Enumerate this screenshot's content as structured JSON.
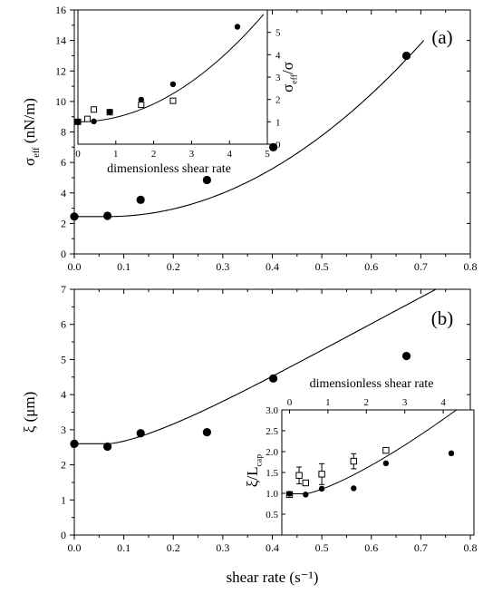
{
  "chart_data": [
    {
      "id": "a",
      "type": "scatter",
      "panel_label": "(a)",
      "ylabel": "σ_eff (nN/m)",
      "xlim": [
        0,
        0.8
      ],
      "ylim": [
        0,
        16
      ],
      "x_ticks": [
        "0.0",
        "0.1",
        "0.2",
        "0.3",
        "0.4",
        "0.5",
        "0.6",
        "0.7",
        "0.8"
      ],
      "y_ticks": [
        "0",
        "2",
        "4",
        "6",
        "8",
        "10",
        "12",
        "14",
        "16"
      ],
      "series": [
        {
          "marker": "filled-circle",
          "x": [
            0.0,
            0.067,
            0.134,
            0.268,
            0.402,
            0.671
          ],
          "y": [
            2.45,
            2.5,
            3.55,
            4.85,
            7.0,
            13.0
          ]
        }
      ],
      "fit_curve": {
        "y0": 2.45,
        "x0": 0.067,
        "k": 28.3,
        "x_end": 0.706
      },
      "inset": {
        "type": "scatter",
        "xlabel": "dimensionless shear rate",
        "ylabel": "σ_eff/σ",
        "xlim": [
          0,
          5
        ],
        "ylim": [
          0,
          6
        ],
        "x_ticks": [
          "0",
          "1",
          "2",
          "3",
          "4",
          "5"
        ],
        "y_ticks": [
          "0",
          "1",
          "2",
          "3",
          "4",
          "5"
        ],
        "series": [
          {
            "marker": "filled-circle",
            "x": [
              0.0,
              0.42,
              0.84,
              1.67,
              2.51,
              4.21
            ],
            "y": [
              1.0,
              1.02,
              1.45,
              1.99,
              2.68,
              5.25
            ]
          },
          {
            "marker": "open-square",
            "x": [
              0.0,
              0.25,
              0.42,
              0.84,
              1.67,
              2.51
            ],
            "y": [
              1.0,
              1.13,
              1.55,
              1.43,
              1.76,
              1.94
            ]
          }
        ],
        "fit_curve": {
          "y0": 1.0,
          "k": 0.2,
          "x_end": 4.9
        }
      }
    },
    {
      "id": "b",
      "type": "scatter",
      "panel_label": "(b)",
      "ylabel": "ξ (μm)",
      "xlabel": "shear rate (s⁻¹)",
      "xlim": [
        0,
        0.8
      ],
      "ylim": [
        0,
        7
      ],
      "x_ticks": [
        "0.0",
        "0.1",
        "0.2",
        "0.3",
        "0.4",
        "0.5",
        "0.6",
        "0.7",
        "0.8"
      ],
      "y_ticks": [
        "0",
        "1",
        "2",
        "3",
        "4",
        "5",
        "6",
        "7"
      ],
      "series": [
        {
          "marker": "filled-circle",
          "x": [
            0.0,
            0.067,
            0.134,
            0.268,
            0.402,
            0.671
          ],
          "y": [
            2.6,
            2.52,
            2.9,
            2.93,
            4.46,
            5.1
          ]
        }
      ],
      "fit_curve": {
        "y0": 2.6,
        "x0": 0.067,
        "k": 13.0,
        "p": 1.5,
        "x_end": 0.8
      },
      "inset": {
        "type": "scatter",
        "xlabel": "dimensionless shear rate",
        "ylabel": "ξ/L_cap",
        "x_axis_top": true,
        "xlim": [
          -0.2,
          4.8
        ],
        "ylim": [
          0,
          3.0
        ],
        "x_ticks": [
          "0",
          "1",
          "2",
          "3",
          "4"
        ],
        "y_ticks": [
          "0.5",
          "1.0",
          "1.5",
          "2.0",
          "2.5",
          "3.0"
        ],
        "series": [
          {
            "marker": "filled-circle",
            "x": [
              0.0,
              0.42,
              0.84,
              1.67,
              2.51,
              4.21
            ],
            "y": [
              0.99,
              0.97,
              1.11,
              1.12,
              1.72,
              1.96
            ]
          },
          {
            "marker": "open-square",
            "x": [
              0.0,
              0.25,
              0.42,
              0.84,
              1.67,
              2.51
            ],
            "y": [
              0.97,
              1.43,
              1.25,
              1.46,
              1.77,
              2.03
            ],
            "yerr": [
              0.05,
              0.2,
              0.05,
              0.25,
              0.18,
              0.05
            ]
          }
        ],
        "fit_curve": {
          "y0": 0.99,
          "x0": 0.42,
          "k": 0.34,
          "x_end": 4.8
        }
      }
    }
  ]
}
